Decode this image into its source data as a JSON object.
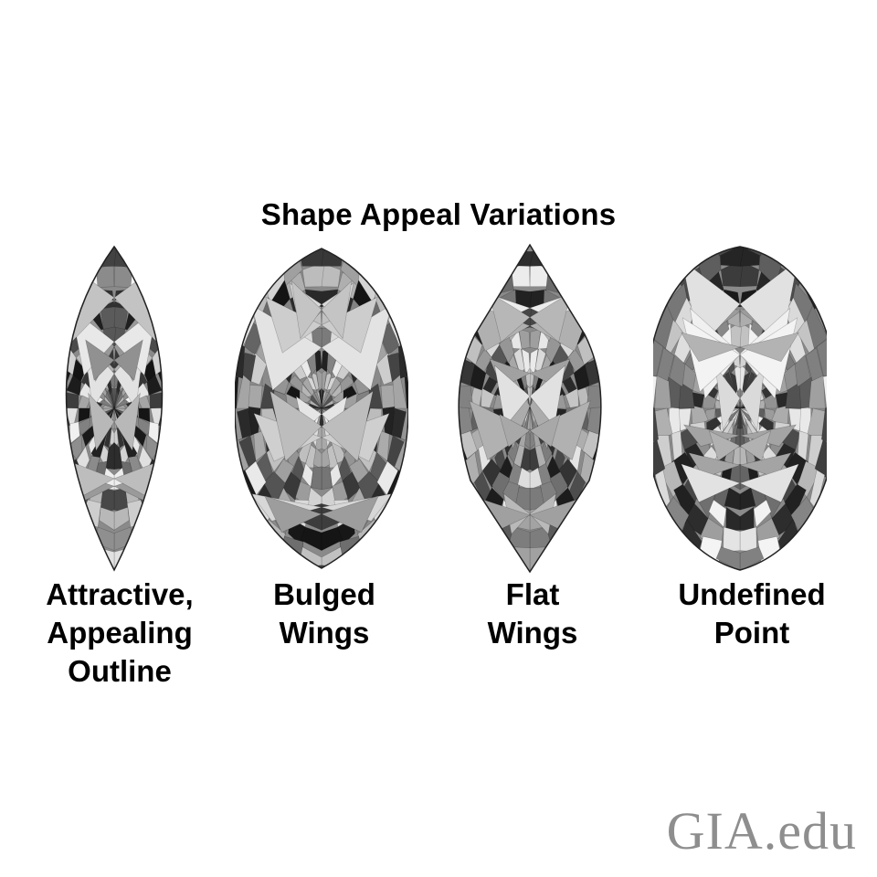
{
  "title": "Shape Appeal Variations",
  "shapes": [
    {
      "icon": "marquise-diamond-icon",
      "variant": "attractive",
      "lines": [
        "Attractive,",
        "Appealing",
        "Outline"
      ]
    },
    {
      "icon": "marquise-diamond-icon",
      "variant": "bulged",
      "lines": [
        "Bulged",
        "Wings"
      ]
    },
    {
      "icon": "marquise-diamond-icon",
      "variant": "flat",
      "lines": [
        "Flat",
        "Wings"
      ]
    },
    {
      "icon": "marquise-diamond-icon",
      "variant": "undefined-point",
      "lines": [
        "Undefined",
        "Point"
      ]
    }
  ],
  "logo": {
    "text": "GIA.edu",
    "color": "#8e8e8e"
  },
  "colors": {
    "background": "#ffffff",
    "text": "#000000",
    "gem_dark": "#1a1a1a",
    "gem_light": "#f2f2f2"
  }
}
